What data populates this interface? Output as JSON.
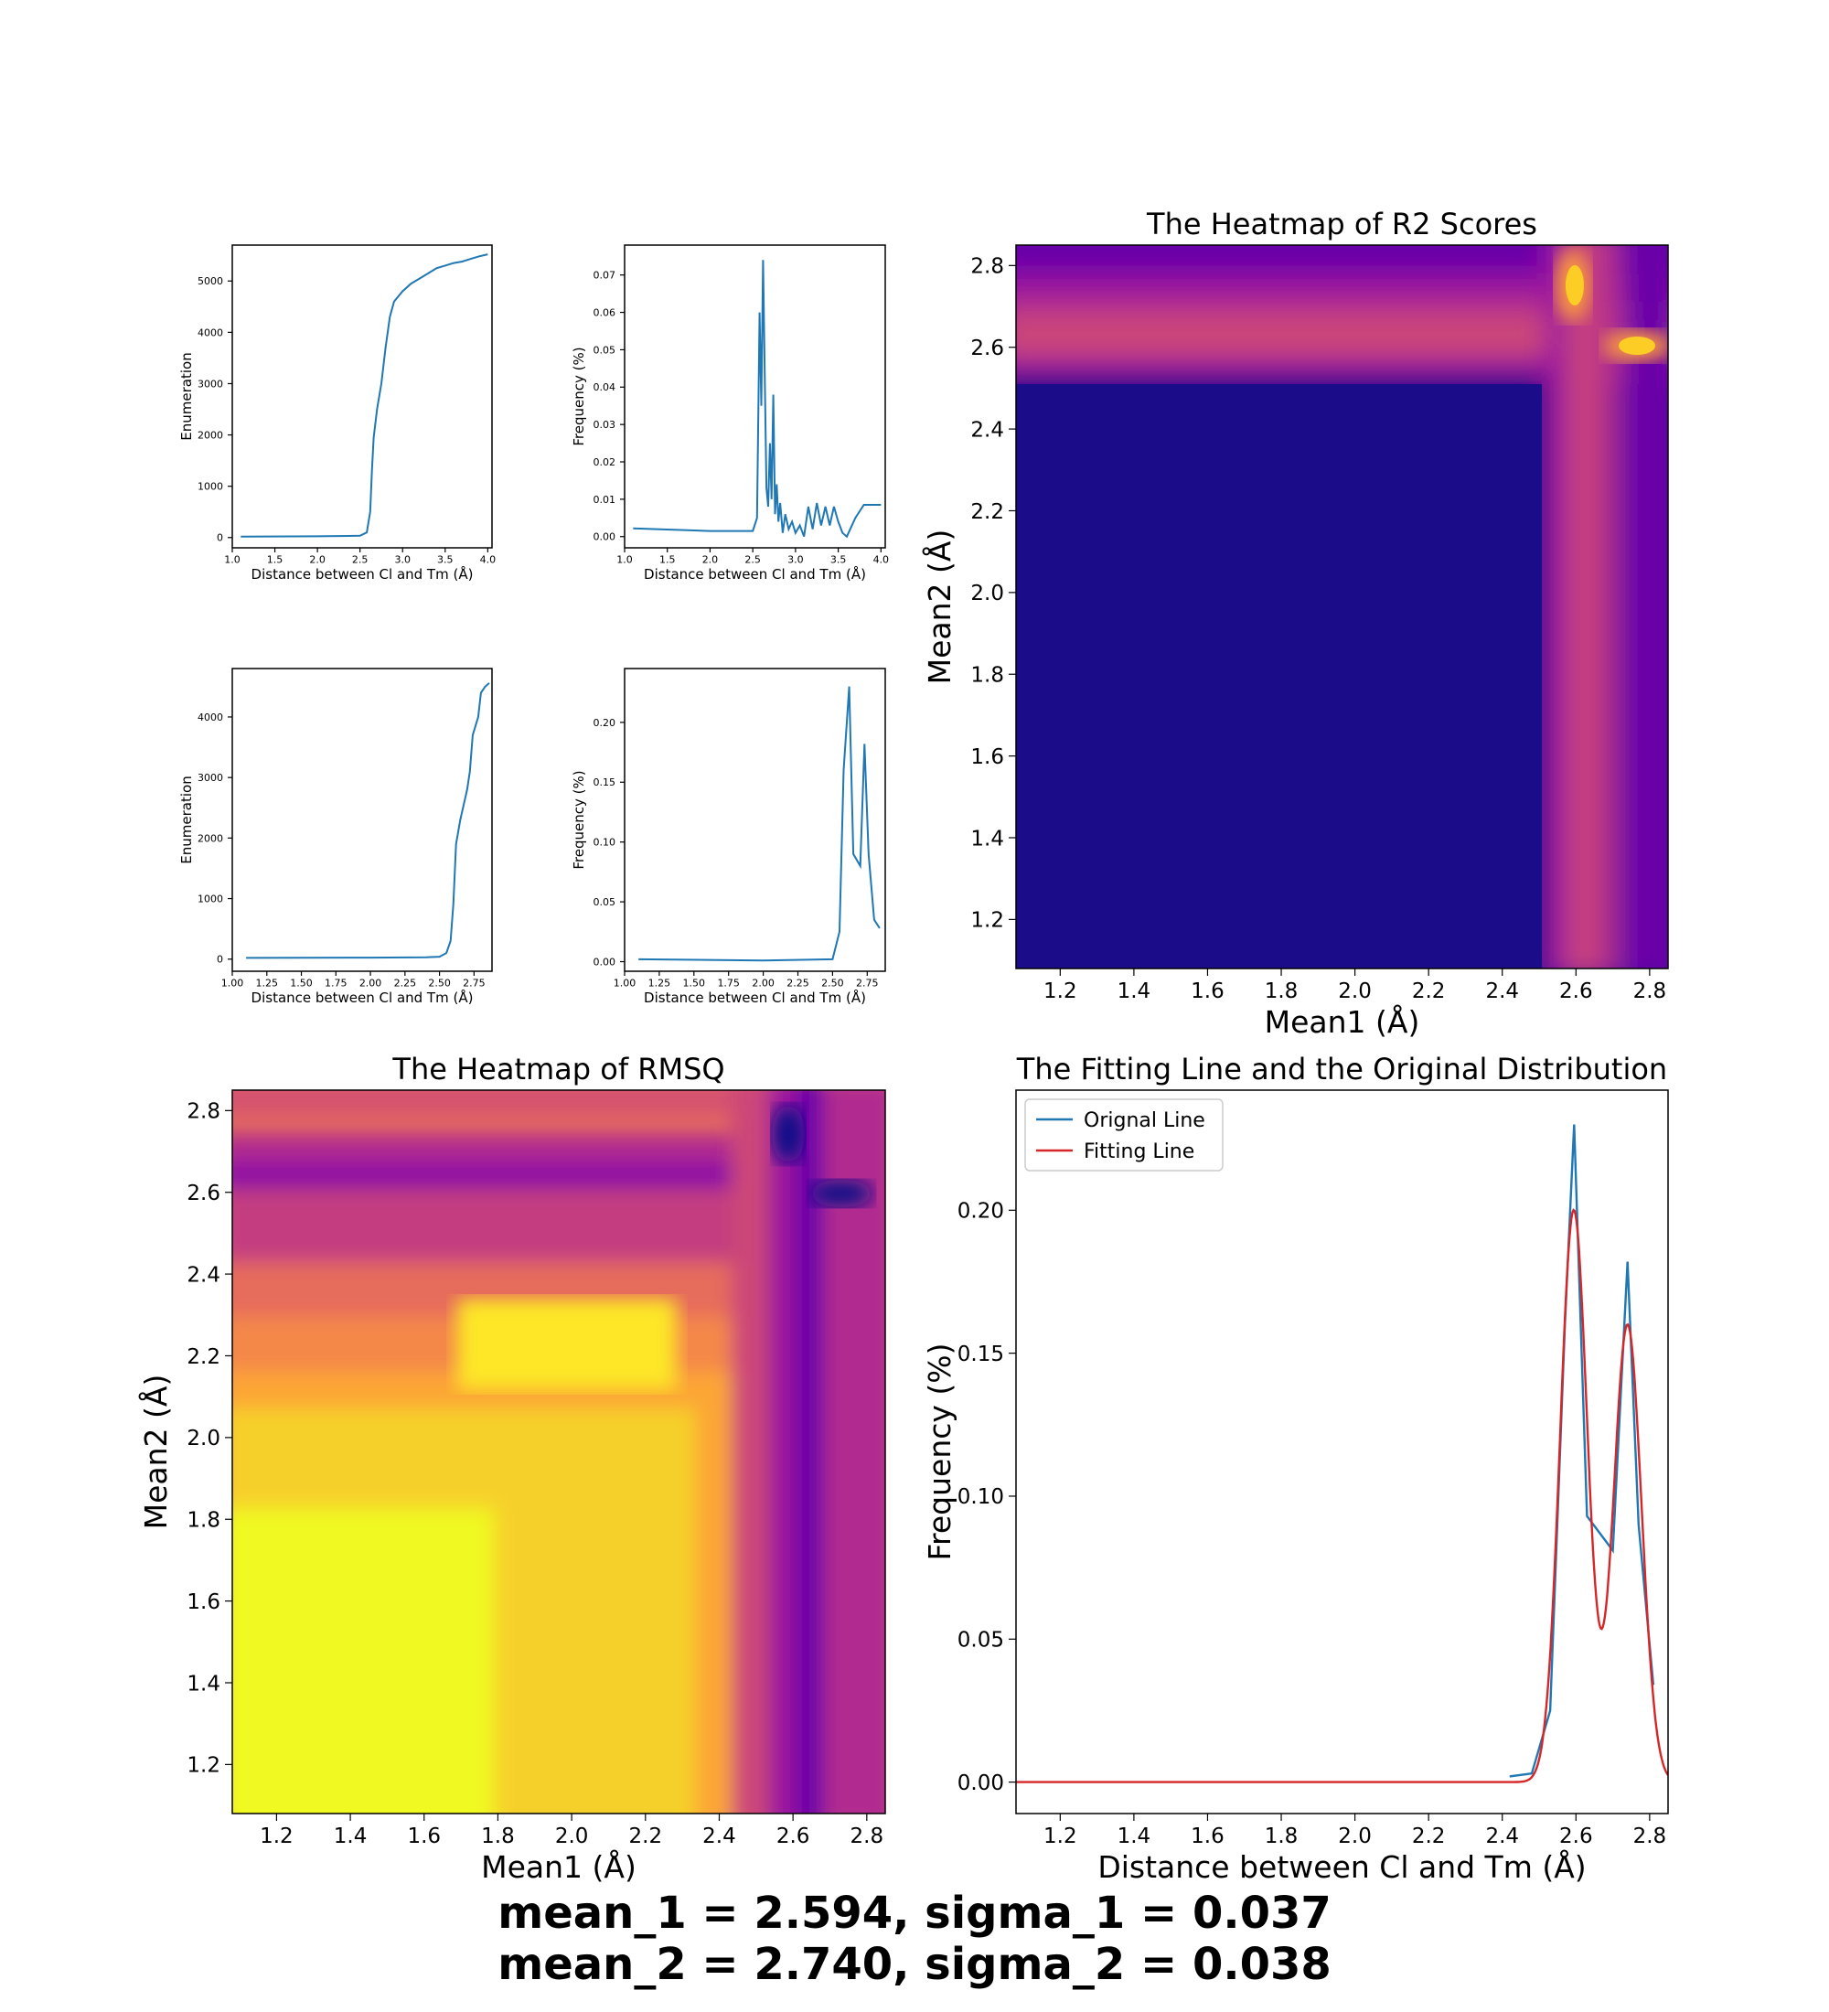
{
  "chart_data": [
    {
      "id": "cdf1",
      "type": "line",
      "xlabel": "Distance between Cl and Tm (Å)",
      "ylabel": "Enumeration",
      "xlim": [
        1.0,
        4.05
      ],
      "ylim": [
        -200,
        5700
      ],
      "xticks": [
        1.0,
        1.5,
        2.0,
        2.5,
        3.0,
        3.5,
        4.0
      ],
      "xtick_labels": [
        "1.0",
        "1.5",
        "2.0",
        "2.5",
        "3.0",
        "3.5",
        "4.0"
      ],
      "yticks": [
        0,
        1000,
        2000,
        3000,
        4000,
        5000
      ],
      "ytick_labels": [
        "0",
        "1000",
        "2000",
        "3000",
        "4000",
        "5000"
      ],
      "series": [
        {
          "color": "#1f77b4",
          "x": [
            1.1,
            2.0,
            2.5,
            2.58,
            2.62,
            2.64,
            2.66,
            2.7,
            2.75,
            2.8,
            2.85,
            2.9,
            3.0,
            3.1,
            3.2,
            3.3,
            3.4,
            3.5,
            3.6,
            3.7,
            3.8,
            3.9,
            4.0
          ],
          "y": [
            20,
            25,
            35,
            100,
            500,
            1300,
            1950,
            2500,
            3000,
            3700,
            4300,
            4600,
            4800,
            4950,
            5050,
            5150,
            5250,
            5300,
            5350,
            5380,
            5430,
            5480,
            5520
          ]
        }
      ]
    },
    {
      "id": "pdf1",
      "type": "line",
      "xlabel": "Distance between Cl and Tm (Å)",
      "ylabel": "Frequency (%)",
      "xlim": [
        1.0,
        4.05
      ],
      "ylim": [
        -0.003,
        0.078
      ],
      "xticks": [
        1.0,
        1.5,
        2.0,
        2.5,
        3.0,
        3.5,
        4.0
      ],
      "xtick_labels": [
        "1.0",
        "1.5",
        "2.0",
        "2.5",
        "3.0",
        "3.5",
        "4.0"
      ],
      "yticks": [
        0.0,
        0.01,
        0.02,
        0.03,
        0.04,
        0.05,
        0.06,
        0.07
      ],
      "ytick_labels": [
        "0.00",
        "0.01",
        "0.02",
        "0.03",
        "0.04",
        "0.05",
        "0.06",
        "0.07"
      ],
      "series": [
        {
          "color": "#1f77b4",
          "x": [
            1.1,
            2.0,
            2.5,
            2.55,
            2.58,
            2.6,
            2.62,
            2.64,
            2.66,
            2.68,
            2.7,
            2.72,
            2.74,
            2.76,
            2.78,
            2.8,
            2.82,
            2.85,
            2.88,
            2.92,
            2.96,
            3.0,
            3.05,
            3.1,
            3.15,
            3.2,
            3.25,
            3.3,
            3.35,
            3.4,
            3.45,
            3.5,
            3.55,
            3.6,
            3.7,
            3.8,
            3.9,
            4.0
          ],
          "y": [
            0.0022,
            0.0015,
            0.0015,
            0.005,
            0.06,
            0.035,
            0.074,
            0.044,
            0.013,
            0.008,
            0.025,
            0.01,
            0.038,
            0.006,
            0.014,
            0.004,
            0.009,
            0.001,
            0.006,
            0.002,
            0.004,
            0.001,
            0.003,
            0.0,
            0.008,
            0.002,
            0.009,
            0.003,
            0.008,
            0.003,
            0.008,
            0.004,
            0.001,
            0.0,
            0.005,
            0.0085,
            0.0085,
            0.0085
          ]
        }
      ]
    },
    {
      "id": "cdf2",
      "type": "line",
      "xlabel": "Distance between Cl and Tm (Å)",
      "ylabel": "Enumeration",
      "xlim": [
        1.0,
        2.88
      ],
      "ylim": [
        -200,
        4800
      ],
      "xticks": [
        1.0,
        1.25,
        1.5,
        1.75,
        2.0,
        2.25,
        2.5,
        2.75
      ],
      "xtick_labels": [
        "1.00",
        "1.25",
        "1.50",
        "1.75",
        "2.00",
        "2.25",
        "2.50",
        "2.75"
      ],
      "yticks": [
        0,
        1000,
        2000,
        3000,
        4000
      ],
      "ytick_labels": [
        "0",
        "1000",
        "2000",
        "3000",
        "4000"
      ],
      "series": [
        {
          "color": "#1f77b4",
          "x": [
            1.1,
            2.0,
            2.4,
            2.5,
            2.55,
            2.58,
            2.6,
            2.62,
            2.65,
            2.7,
            2.72,
            2.74,
            2.78,
            2.8,
            2.83,
            2.86
          ],
          "y": [
            20,
            25,
            30,
            40,
            100,
            300,
            900,
            1900,
            2300,
            2800,
            3100,
            3700,
            4000,
            4400,
            4500,
            4560
          ]
        }
      ]
    },
    {
      "id": "pdf2",
      "type": "line",
      "xlabel": "Distance between Cl and Tm (Å)",
      "ylabel": "Frequency (%)",
      "xlim": [
        1.0,
        2.88
      ],
      "ylim": [
        -0.008,
        0.245
      ],
      "xticks": [
        1.0,
        1.25,
        1.5,
        1.75,
        2.0,
        2.25,
        2.5,
        2.75
      ],
      "xtick_labels": [
        "1.00",
        "1.25",
        "1.50",
        "1.75",
        "2.00",
        "2.25",
        "2.50",
        "2.75"
      ],
      "yticks": [
        0.0,
        0.05,
        0.1,
        0.15,
        0.2
      ],
      "ytick_labels": [
        "0.00",
        "0.05",
        "0.10",
        "0.15",
        "0.20"
      ],
      "series": [
        {
          "color": "#1f77b4",
          "x": [
            1.1,
            2.0,
            2.5,
            2.55,
            2.58,
            2.62,
            2.65,
            2.7,
            2.73,
            2.76,
            2.8,
            2.84
          ],
          "y": [
            0.002,
            0.001,
            0.002,
            0.025,
            0.16,
            0.23,
            0.09,
            0.08,
            0.182,
            0.09,
            0.035,
            0.028
          ]
        }
      ]
    },
    {
      "id": "r2",
      "type": "heatmap",
      "title": "The Heatmap of R2 Scores",
      "xlabel": "Mean1 (Å)",
      "ylabel": "Mean2 (Å)",
      "xlim": [
        1.08,
        2.85
      ],
      "ylim": [
        1.08,
        2.85
      ],
      "xticks": [
        1.2,
        1.4,
        1.6,
        1.8,
        2.0,
        2.2,
        2.4,
        2.6,
        2.8
      ],
      "xtick_labels": [
        "1.2",
        "1.4",
        "1.6",
        "1.8",
        "2.0",
        "2.2",
        "2.4",
        "2.6",
        "2.8"
      ],
      "yticks": [
        1.2,
        1.4,
        1.6,
        1.8,
        2.0,
        2.2,
        2.4,
        2.6,
        2.8
      ],
      "ytick_labels": [
        "1.2",
        "1.4",
        "1.6",
        "1.8",
        "2.0",
        "2.2",
        "2.4",
        "2.6",
        "2.8"
      ],
      "colormap": "plasma"
    },
    {
      "id": "rmsq",
      "type": "heatmap",
      "title": "The Heatmap of RMSQ",
      "xlabel": "Mean1 (Å)",
      "ylabel": "Mean2 (Å)",
      "xlim": [
        1.08,
        2.85
      ],
      "ylim": [
        1.08,
        2.85
      ],
      "xticks": [
        1.2,
        1.4,
        1.6,
        1.8,
        2.0,
        2.2,
        2.4,
        2.6,
        2.8
      ],
      "xtick_labels": [
        "1.2",
        "1.4",
        "1.6",
        "1.8",
        "2.0",
        "2.2",
        "2.4",
        "2.6",
        "2.8"
      ],
      "yticks": [
        1.2,
        1.4,
        1.6,
        1.8,
        2.0,
        2.2,
        2.4,
        2.6,
        2.8
      ],
      "ytick_labels": [
        "1.2",
        "1.4",
        "1.6",
        "1.8",
        "2.0",
        "2.2",
        "2.4",
        "2.6",
        "2.8"
      ],
      "colormap": "plasma"
    },
    {
      "id": "fit",
      "type": "line",
      "title": "The Fitting Line and the Original Distribution",
      "xlabel": "Distance between Cl and Tm (Å)",
      "ylabel": "Frequency (%)",
      "xlim": [
        1.08,
        2.85
      ],
      "ylim": [
        -0.011,
        0.242
      ],
      "xticks": [
        1.2,
        1.4,
        1.6,
        1.8,
        2.0,
        2.2,
        2.4,
        2.6,
        2.8
      ],
      "xtick_labels": [
        "1.2",
        "1.4",
        "1.6",
        "1.8",
        "2.0",
        "2.2",
        "2.4",
        "2.6",
        "2.8"
      ],
      "yticks": [
        0.0,
        0.05,
        0.1,
        0.15,
        0.2
      ],
      "ytick_labels": [
        "0.00",
        "0.05",
        "0.10",
        "0.15",
        "0.20"
      ],
      "legend_position": "top-left",
      "series": [
        {
          "name": "Orignal Line",
          "color": "#1f77b4",
          "x": [
            2.42,
            2.48,
            2.53,
            2.57,
            2.595,
            2.63,
            2.7,
            2.74,
            2.77,
            2.81
          ],
          "y": [
            0.002,
            0.003,
            0.025,
            0.16,
            0.23,
            0.093,
            0.081,
            0.182,
            0.09,
            0.034
          ]
        },
        {
          "name": "Fitting Line",
          "color": "#d62728",
          "gaussians": [
            {
              "mean": 2.594,
              "sigma": 0.037,
              "amp": 0.2
            },
            {
              "mean": 2.74,
              "sigma": 0.038,
              "amp": 0.16
            }
          ]
        }
      ]
    }
  ],
  "caption": {
    "line1": "mean_1 = 2.594, sigma_1 = 0.037",
    "line2": "mean_2 = 2.740, sigma_2 = 0.038"
  }
}
